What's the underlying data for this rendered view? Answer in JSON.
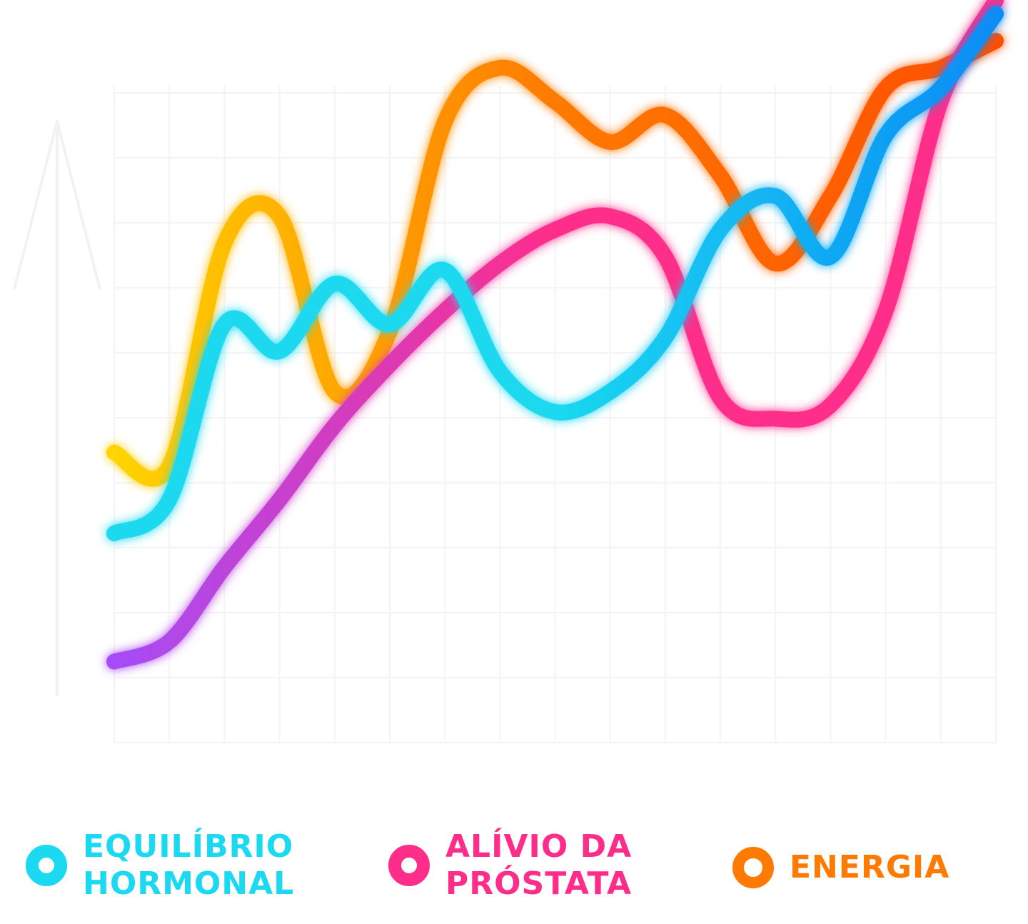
{
  "chart_data": {
    "type": "line",
    "title": "",
    "xlabel": "",
    "ylabel": "",
    "grid": true,
    "legend_position": "bottom",
    "x": [
      0,
      1,
      2,
      3,
      4,
      5,
      6,
      7,
      8,
      9,
      10,
      11,
      12,
      13,
      14,
      15,
      16
    ],
    "ylim": [
      0,
      100
    ],
    "series": [
      {
        "name": "EQUILÍBRIO\nHORMONAL",
        "color": "#1ad9f0",
        "color_end": "#0a8cf5",
        "values": [
          31,
          36,
          62,
          58,
          68,
          62,
          70,
          55,
          49,
          52,
          60,
          76,
          81,
          72,
          90,
          97,
          108
        ]
      },
      {
        "name": "ALÍVIO DA\nPRÓSTATA",
        "color": "#ff2d8a",
        "color_start": "#a54cf7",
        "values": [
          12,
          15,
          26,
          36,
          47,
          56,
          64,
          71,
          76,
          78,
          72,
          51,
          48,
          50,
          64,
          95,
          110
        ]
      },
      {
        "name": "ENERGIA",
        "color": "#ff7a00",
        "color_start": "#ffd400",
        "color_end": "#ff4e00",
        "values": [
          43,
          41,
          74,
          78,
          52,
          61,
          92,
          100,
          95,
          89,
          93,
          84,
          71,
          81,
          97,
          100,
          104
        ]
      }
    ]
  }
}
